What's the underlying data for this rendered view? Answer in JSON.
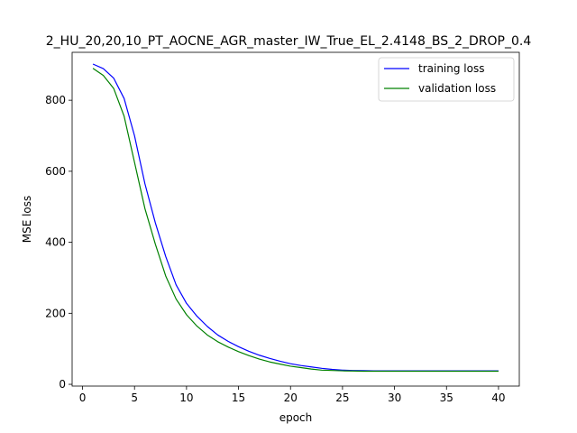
{
  "chart_data": {
    "type": "line",
    "title": "2_HU_20,20,10_PT_AOCNE_AGR_master_IW_True_EL_2.4148_BS_2_DROP_0.4",
    "xlabel": "epoch",
    "ylabel": "MSE loss",
    "xlim": [
      -1,
      42
    ],
    "ylim": [
      -5,
      935
    ],
    "xticks": [
      0,
      5,
      10,
      15,
      20,
      25,
      30,
      35,
      40
    ],
    "yticks": [
      0,
      200,
      400,
      600,
      800
    ],
    "grid": false,
    "legend": {
      "placement": "top-right"
    },
    "x": [
      1,
      2,
      3,
      4,
      5,
      6,
      7,
      8,
      9,
      10,
      11,
      12,
      13,
      14,
      15,
      16,
      17,
      18,
      19,
      20,
      21,
      22,
      23,
      24,
      25,
      26,
      27,
      28,
      29,
      30,
      31,
      32,
      33,
      34,
      35,
      36,
      37,
      38,
      39,
      40
    ],
    "series": [
      {
        "name": "training loss",
        "color": "#0000ff",
        "values": [
          902,
          889,
          862,
          805,
          700,
          565,
          455,
          360,
          280,
          228,
          192,
          163,
          139,
          121,
          106,
          93,
          82,
          73,
          65,
          58,
          53,
          49,
          45,
          42,
          40,
          39,
          38.5,
          38,
          38,
          38,
          38,
          38,
          38,
          38,
          38,
          38,
          38,
          38,
          38,
          38
        ]
      },
      {
        "name": "validation loss",
        "color": "#008000",
        "values": [
          890,
          870,
          833,
          755,
          625,
          495,
          395,
          305,
          240,
          196,
          164,
          139,
          120,
          105,
          92,
          81,
          71,
          63,
          57,
          51,
          47,
          43,
          40,
          39,
          38,
          37.5,
          37,
          37,
          37,
          37,
          37,
          37,
          37,
          37,
          37,
          37,
          37,
          37,
          37,
          37
        ]
      }
    ]
  }
}
